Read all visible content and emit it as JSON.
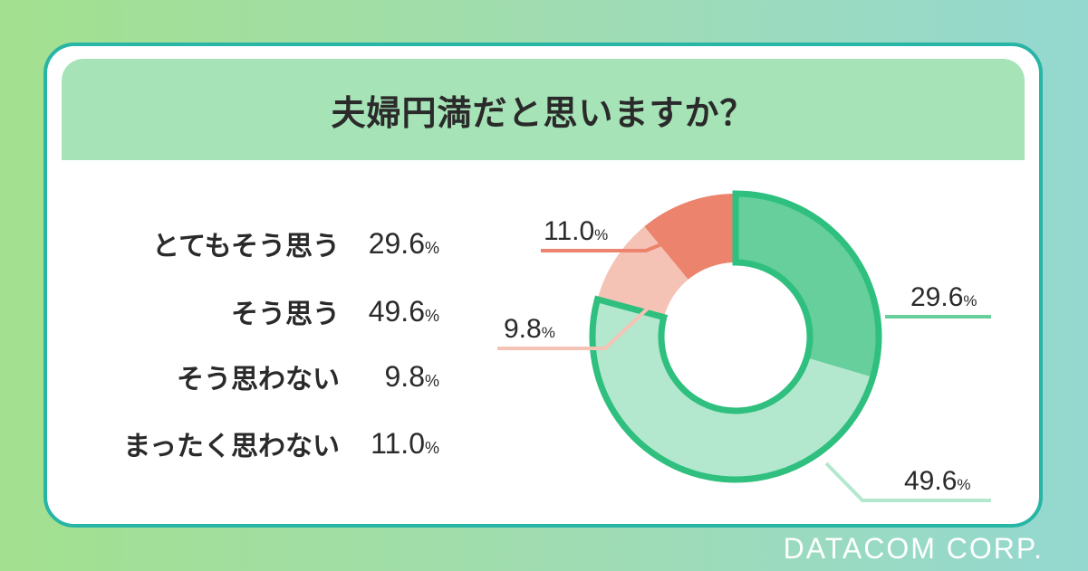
{
  "title": "夫婦円満だと思いますか？",
  "footer": "DATACOM CORP.",
  "colors": {
    "very_agree": "#66cf9c",
    "agree": "#b3e8cf",
    "disagree": "#f5c3b6",
    "strongly_disagree": "#ec836d",
    "outline": "#2fbf7e"
  },
  "chart_data": {
    "type": "pie",
    "categories": [
      "とてもそう思う",
      "そう思う",
      "そう思わない",
      "まったく思わない"
    ],
    "values": [
      29.6,
      49.6,
      9.8,
      11.0
    ],
    "value_labels": [
      "29.6",
      "49.6",
      "9.8",
      "11.0"
    ],
    "unit": "%",
    "donut": true
  }
}
